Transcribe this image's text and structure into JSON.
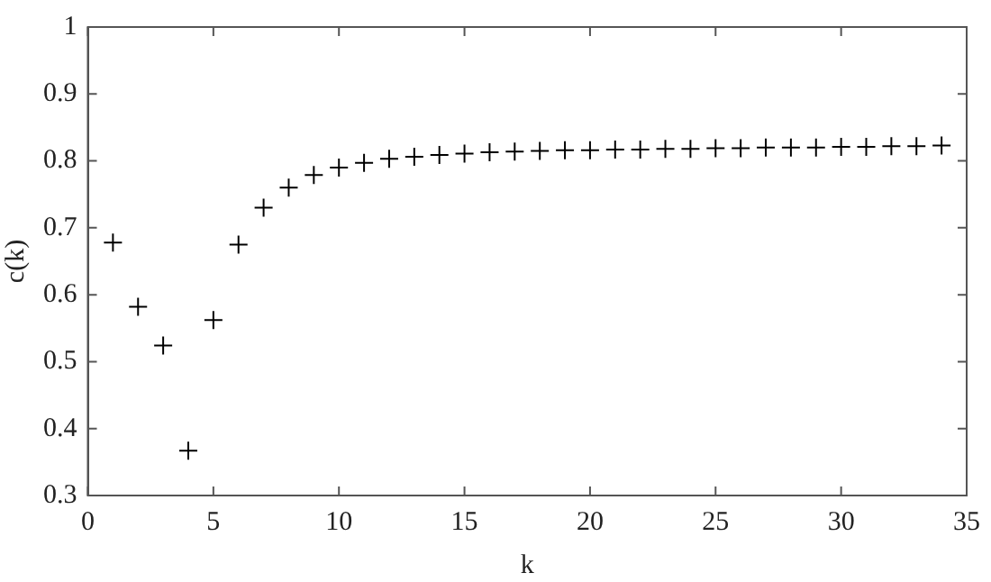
{
  "chart_data": {
    "type": "scatter",
    "xlabel": "k",
    "ylabel": "c(k)",
    "x": [
      1,
      2,
      3,
      4,
      5,
      6,
      7,
      8,
      9,
      10,
      11,
      12,
      13,
      14,
      15,
      16,
      17,
      18,
      19,
      20,
      21,
      22,
      23,
      24,
      25,
      26,
      27,
      28,
      29,
      30,
      31,
      32,
      33,
      34
    ],
    "series": [
      {
        "color": "#000000",
        "values": [
          0.678,
          0.582,
          0.524,
          0.367,
          0.562,
          0.675,
          0.73,
          0.76,
          0.779,
          0.79,
          0.797,
          0.803,
          0.806,
          0.809,
          0.811,
          0.813,
          0.814,
          0.815,
          0.816,
          0.816,
          0.817,
          0.817,
          0.818,
          0.818,
          0.819,
          0.819,
          0.82,
          0.82,
          0.82,
          0.821,
          0.821,
          0.822,
          0.822,
          0.823
        ]
      }
    ],
    "xlim": [
      0,
      35
    ],
    "xticks": [
      0,
      5,
      10,
      15,
      20,
      25,
      30,
      35
    ],
    "ylim": [
      0.3,
      1
    ],
    "yticks": [
      0.3,
      0.4,
      0.5,
      0.6,
      0.7,
      0.8,
      0.9,
      1
    ],
    "grid": false,
    "legend": false,
    "marker": "cross"
  }
}
